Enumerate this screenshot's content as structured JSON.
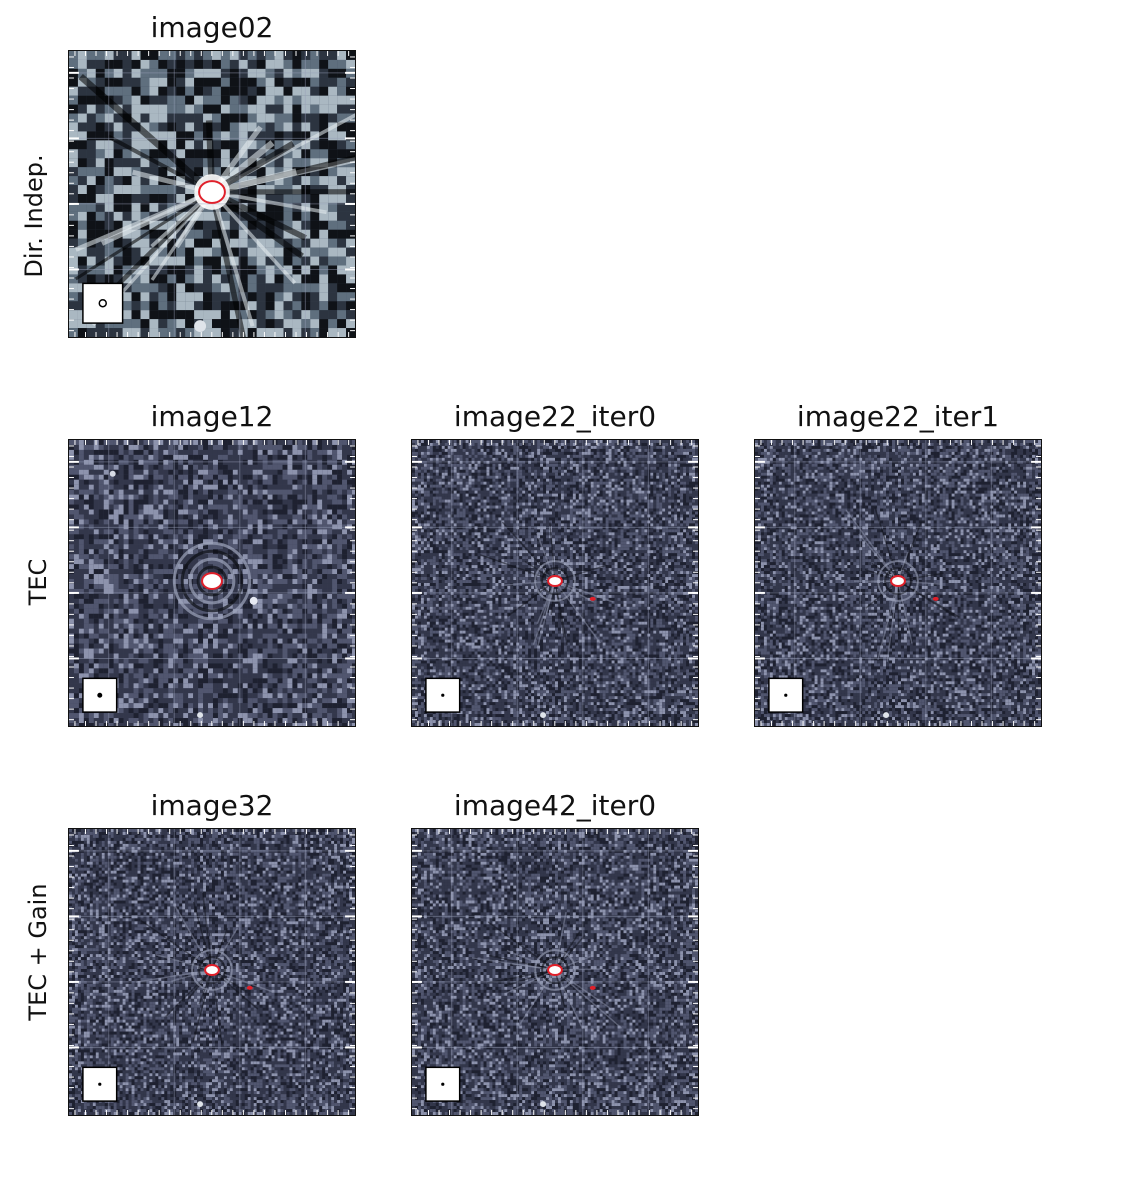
{
  "rows": [
    {
      "label": "Dir. Indep."
    },
    {
      "label": "TEC"
    },
    {
      "label": "TEC + Gain"
    }
  ],
  "panels": [
    {
      "title": "image02",
      "style": "coarse",
      "secondary_source": false
    },
    {
      "title": "image12",
      "style": "medium",
      "secondary_source": false
    },
    {
      "title": "image22_iter0",
      "style": "fine",
      "secondary_source": true
    },
    {
      "title": "image22_iter1",
      "style": "fine",
      "secondary_source": true
    },
    {
      "title": "image32",
      "style": "fine",
      "secondary_source": true
    },
    {
      "title": "image42_iter0",
      "style": "fine",
      "secondary_source": true
    }
  ],
  "colors": {
    "background_dark": "#2b2f42",
    "noise_light": "#c9d2d8",
    "contour": "#e0202a",
    "grid": "#9aa0b8"
  }
}
